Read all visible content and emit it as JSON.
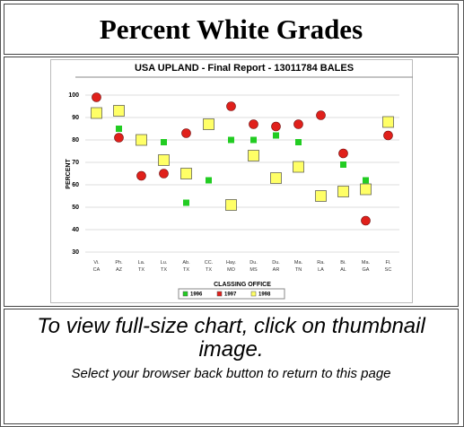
{
  "header": {
    "title": "Percent White Grades"
  },
  "chart_data": {
    "type": "scatter",
    "title": "USA UPLAND  - Final Report - 13011784 BALES",
    "y_label": "PERCENT",
    "x_label": "CLASSING OFFICE",
    "categories": [
      "Vi. CA",
      "Ph. AZ",
      "La. TX",
      "Lu. TX",
      "Ab. TX",
      "CC. TX",
      "Hay. MO",
      "Du. MS",
      "Du. AR",
      "Ma. TN",
      "Ra. LA",
      "Bi. AL",
      "Ma. GA",
      "Fl. SC"
    ],
    "series": [
      {
        "name": "1996",
        "color": "#22cc22",
        "marker": "small-square",
        "values": [
          93,
          85,
          null,
          79,
          52,
          62,
          80,
          80,
          82,
          79,
          null,
          69,
          62,
          null
        ]
      },
      {
        "name": "1997",
        "color": "#e0201b",
        "marker": "circle",
        "values": [
          99,
          81,
          64,
          65,
          83,
          null,
          95,
          87,
          86,
          87,
          91,
          74,
          44,
          82
        ]
      },
      {
        "name": "1998",
        "color": "#ffff66",
        "marker": "square",
        "values": [
          92,
          93,
          80,
          71,
          65,
          87,
          51,
          73,
          63,
          68,
          55,
          57,
          58,
          88
        ]
      }
    ],
    "ylim": [
      30,
      100
    ],
    "yticks": [
      30,
      40,
      50,
      60,
      70,
      80,
      90,
      100
    ],
    "grid": true
  },
  "caption": {
    "main": "To view full-size chart, click on thumbnail image.",
    "note": "Select your browser back button to return to this page"
  }
}
